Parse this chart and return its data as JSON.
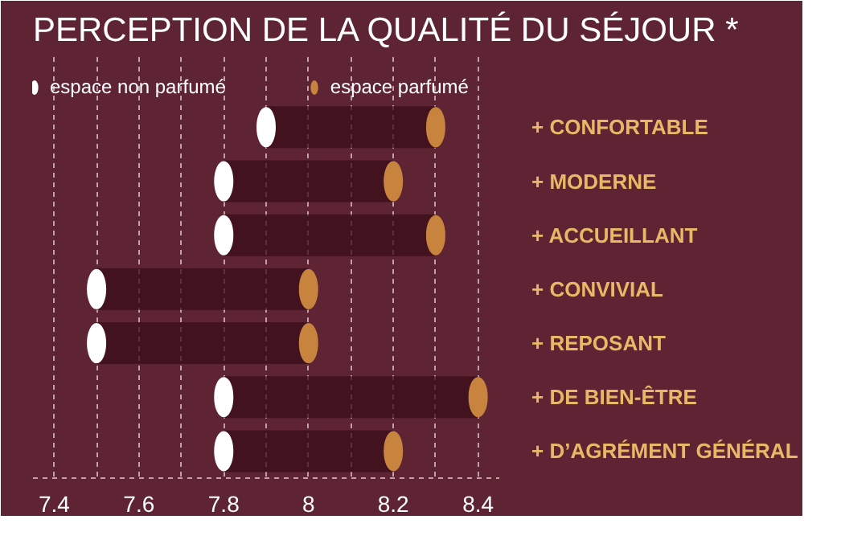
{
  "chart_data": {
    "type": "scatter",
    "title": "PERCEPTION DE LA QUALITÉ DU SÉJOUR *",
    "categories": [
      "+ CONFORTABLE",
      "+ MODERNE",
      "+ ACCUEILLANT",
      "+ CONVIVIAL",
      "+ REPOSANT",
      "+ DE BIEN-ÊTRE",
      "+ D’AGRÉMENT GÉNÉRAL"
    ],
    "orientation": "horizontal",
    "series": [
      {
        "name": "espace non parfumé",
        "color": "#ffffff",
        "values": [
          7.9,
          7.8,
          7.8,
          7.5,
          7.5,
          7.8,
          7.8
        ]
      },
      {
        "name": "espace parfumé",
        "color": "#c8843e",
        "values": [
          8.3,
          8.2,
          8.3,
          8.0,
          8.0,
          8.4,
          8.2
        ]
      }
    ],
    "xlim": [
      7.35,
      8.45
    ],
    "xticks": [
      7.4,
      {
        "value": 7.5,
        "label": null
      },
      7.6,
      {
        "value": 7.7,
        "label": null
      },
      7.8,
      {
        "value": 7.9,
        "label": null
      },
      8,
      {
        "value": 8.1,
        "label": null
      },
      8.2,
      {
        "value": 8.3,
        "label": null
      },
      8.4
    ],
    "grid": "x",
    "legend": "top",
    "marker": "circle"
  }
}
